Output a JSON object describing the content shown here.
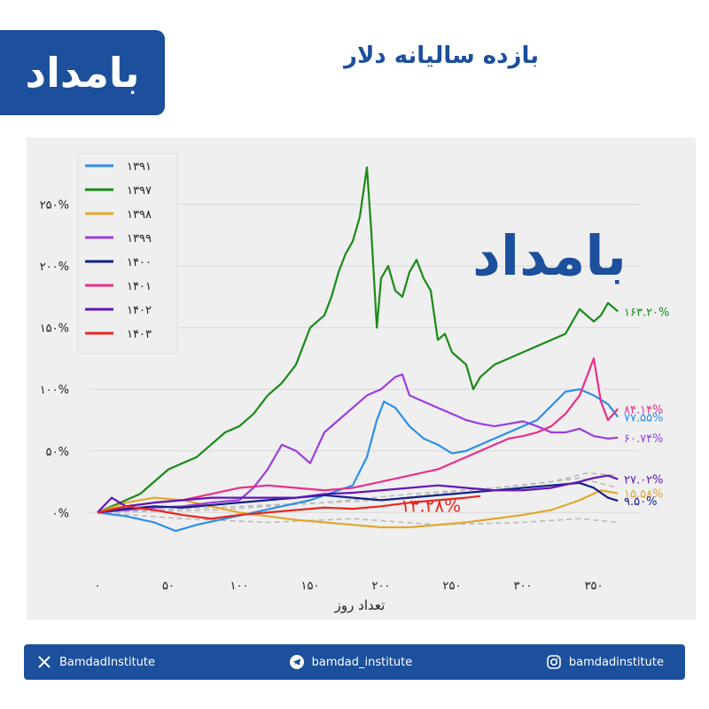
{
  "brand": {
    "logo_text": "بامداد"
  },
  "title": "بازده سالیانه دلار",
  "chart_data": {
    "type": "line",
    "title": "بازده سالیانه دلار",
    "xlabel": "تعداد روز",
    "ylabel": "",
    "xlim": [
      0,
      370
    ],
    "ylim": [
      -30,
      290
    ],
    "x_ticks": [
      0,
      50,
      100,
      150,
      200,
      250,
      300,
      350
    ],
    "x_tick_labels": [
      "۰",
      "۵۰",
      "۱۰۰",
      "۱۵۰",
      "۲۰۰",
      "۲۵۰",
      "۳۰۰",
      "۳۵۰"
    ],
    "y_ticks": [
      0,
      50,
      100,
      150,
      200,
      250
    ],
    "y_tick_labels": [
      "۰%",
      "۵۰%",
      "۱۰۰%",
      "۱۵۰%",
      "۲۰۰%",
      "۲۵۰%"
    ],
    "grid": "horizontal",
    "legend_position": "top-left",
    "watermark": "بامداد",
    "series": [
      {
        "name": "۱۳۹۱",
        "color": "#2c8fe8",
        "x": [
          0,
          20,
          40,
          55,
          70,
          90,
          110,
          130,
          150,
          170,
          180,
          190,
          197,
          202,
          210,
          220,
          230,
          240,
          250,
          260,
          270,
          290,
          310,
          330,
          340,
          350,
          360,
          367
        ],
        "y": [
          0,
          -3,
          -8,
          -15,
          -10,
          -5,
          0,
          5,
          10,
          18,
          22,
          45,
          75,
          90,
          85,
          70,
          60,
          55,
          48,
          50,
          55,
          65,
          75,
          98,
          100,
          95,
          88,
          77.55
        ]
      },
      {
        "name": "۱۳۹۷",
        "color": "#1a8a1a",
        "x": [
          0,
          10,
          20,
          30,
          40,
          50,
          60,
          70,
          80,
          90,
          100,
          110,
          120,
          130,
          140,
          150,
          160,
          165,
          170,
          175,
          180,
          185,
          190,
          193,
          197,
          200,
          205,
          210,
          215,
          220,
          225,
          230,
          235,
          240,
          245,
          250,
          260,
          265,
          270,
          280,
          290,
          300,
          310,
          320,
          330,
          340,
          350,
          355,
          360,
          367
        ],
        "y": [
          0,
          5,
          10,
          15,
          25,
          35,
          40,
          45,
          55,
          65,
          70,
          80,
          95,
          105,
          120,
          150,
          160,
          175,
          195,
          210,
          220,
          240,
          280,
          230,
          150,
          190,
          200,
          180,
          175,
          195,
          205,
          190,
          180,
          140,
          145,
          130,
          120,
          100,
          110,
          120,
          125,
          130,
          135,
          140,
          145,
          165,
          155,
          160,
          170,
          163.2
        ]
      },
      {
        "name": "۱۳۹۸",
        "color": "#e0a82e",
        "x": [
          0,
          20,
          40,
          60,
          80,
          100,
          120,
          140,
          160,
          180,
          200,
          220,
          240,
          260,
          280,
          300,
          320,
          340,
          355,
          367
        ],
        "y": [
          0,
          8,
          12,
          10,
          5,
          0,
          -3,
          -6,
          -8,
          -10,
          -12,
          -12,
          -10,
          -8,
          -5,
          -2,
          2,
          10,
          18,
          15.58
        ]
      },
      {
        "name": "۱۳۹۹",
        "color": "#9b3de0",
        "x": [
          0,
          20,
          40,
          60,
          80,
          100,
          110,
          120,
          130,
          140,
          150,
          160,
          170,
          180,
          190,
          200,
          210,
          215,
          220,
          230,
          240,
          250,
          260,
          270,
          280,
          290,
          300,
          310,
          320,
          330,
          340,
          350,
          360,
          367
        ],
        "y": [
          0,
          2,
          4,
          5,
          8,
          10,
          20,
          35,
          55,
          50,
          40,
          65,
          75,
          85,
          95,
          100,
          110,
          112,
          95,
          90,
          85,
          80,
          75,
          72,
          70,
          72,
          74,
          70,
          65,
          65,
          68,
          62,
          60,
          60.74
        ]
      },
      {
        "name": "۱۴۰۰",
        "color": "#141f8a",
        "x": [
          0,
          20,
          40,
          60,
          80,
          100,
          120,
          140,
          160,
          180,
          200,
          220,
          240,
          260,
          280,
          300,
          320,
          340,
          350,
          360,
          367
        ],
        "y": [
          0,
          3,
          5,
          4,
          6,
          8,
          10,
          12,
          14,
          12,
          10,
          12,
          14,
          16,
          18,
          20,
          22,
          24,
          20,
          12,
          9.5
        ]
      },
      {
        "name": "۱۴۰۱",
        "color": "#e8308a",
        "x": [
          0,
          20,
          40,
          60,
          80,
          100,
          120,
          140,
          160,
          180,
          200,
          220,
          240,
          250,
          260,
          270,
          280,
          290,
          300,
          310,
          320,
          330,
          340,
          345,
          350,
          355,
          360,
          367
        ],
        "y": [
          0,
          5,
          8,
          10,
          15,
          20,
          22,
          20,
          18,
          20,
          25,
          30,
          35,
          40,
          45,
          50,
          55,
          60,
          62,
          65,
          70,
          80,
          95,
          110,
          125,
          90,
          75,
          84.14
        ]
      },
      {
        "name": "۱۴۰۲",
        "color": "#6017b8",
        "x": [
          0,
          10,
          20,
          40,
          60,
          80,
          100,
          120,
          140,
          160,
          180,
          200,
          220,
          240,
          260,
          280,
          300,
          320,
          340,
          350,
          360,
          367
        ],
        "y": [
          0,
          12,
          5,
          8,
          10,
          12,
          12,
          12,
          12,
          15,
          16,
          18,
          20,
          22,
          20,
          18,
          18,
          20,
          25,
          28,
          30,
          27.02
        ]
      },
      {
        "name": "۱۴۰۳",
        "color": "#e8271f",
        "x": [
          0,
          20,
          40,
          60,
          80,
          100,
          120,
          140,
          160,
          180,
          200,
          220,
          240,
          260,
          270
        ],
        "y": [
          0,
          5,
          2,
          -2,
          -5,
          -2,
          0,
          2,
          4,
          3,
          5,
          8,
          10,
          12,
          13.28
        ]
      }
    ],
    "end_labels": [
      {
        "series": "۱۳۹۷",
        "text": "۱۶۳.۲۰%",
        "color": "#1a8a1a",
        "value": 163.2
      },
      {
        "series": "۱۴۰۱",
        "text": "۸۴.۱۴%",
        "color": "#e8308a",
        "value": 84.14
      },
      {
        "series": "۱۳۹۱",
        "text": "۷۷.۵۵%",
        "color": "#2c8fe8",
        "value": 77.55
      },
      {
        "series": "۱۳۹۹",
        "text": "۶۰.۷۴%",
        "color": "#9b3de0",
        "value": 60.74
      },
      {
        "series": "۱۴۰۲",
        "text": "۲۷.۰۲%",
        "color": "#6017b8",
        "value": 27.02
      },
      {
        "series": "۱۳۹۸",
        "text": "۱۵.۵۸%",
        "color": "#e0a82e",
        "value": 15.58
      },
      {
        "series": "۱۴۰۰",
        "text": "۹.۵۰%",
        "color": "#141f8a",
        "value": 9.5
      }
    ],
    "inline_labels": [
      {
        "series": "۱۴۰۳",
        "text": "۱۳.۲۸%",
        "color": "#e8271f",
        "x": 235,
        "y": 5
      }
    ]
  },
  "footer": {
    "x": {
      "handle": "BamdadInstitute",
      "icon": "x-icon"
    },
    "telegram": {
      "handle": "bamdad_institute",
      "icon": "telegram-icon"
    },
    "instagram": {
      "handle": "bamdadinstitute",
      "icon": "instagram-icon"
    }
  }
}
